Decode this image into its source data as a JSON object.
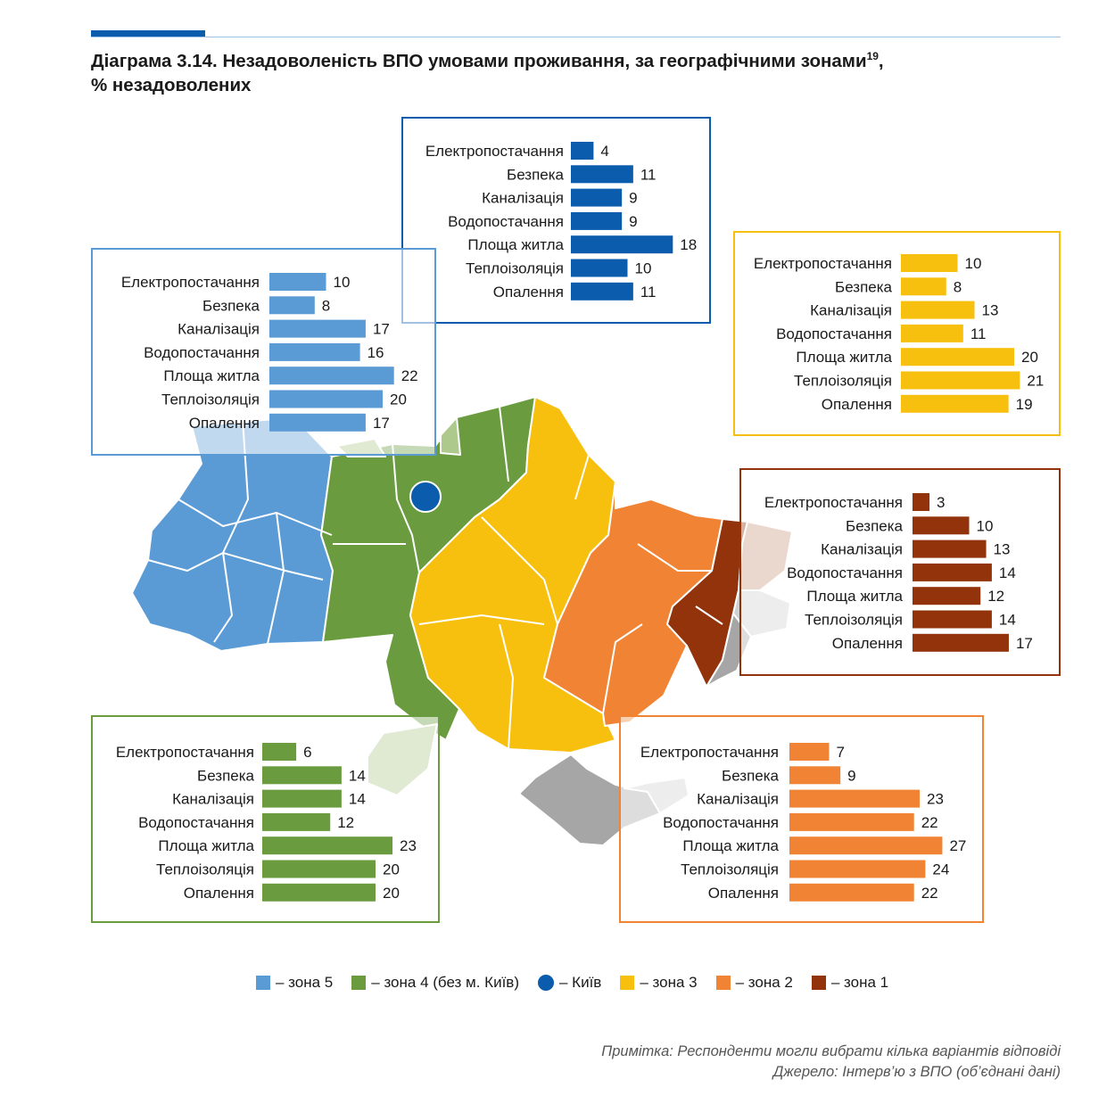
{
  "header": {
    "title_main": "Діаграма 3.14. Незадоволеність ВПО умовами проживання, за географічними зонами",
    "title_sup": "19",
    "title_tail": ",",
    "subtitle": "% незадоволених",
    "accent_color": "#0b5cad"
  },
  "chart_data": [
    {
      "type": "bar",
      "orientation": "horizontal",
      "series": "Київ",
      "color": "#0b5cad",
      "xlim": [
        0,
        27
      ],
      "categories": [
        "Електропостачання",
        "Безпека",
        "Каналізація",
        "Водопостачання",
        "Площа житла",
        "Теплоізоляція",
        "Опалення"
      ],
      "values": [
        4,
        11,
        9,
        9,
        18,
        10,
        11
      ]
    },
    {
      "type": "bar",
      "orientation": "horizontal",
      "series": "зона 5",
      "color": "#5b9bd5",
      "xlim": [
        0,
        27
      ],
      "categories": [
        "Електропостачання",
        "Безпека",
        "Каналізація",
        "Водопостачання",
        "Площа житла",
        "Теплоізоляція",
        "Опалення"
      ],
      "values": [
        10,
        8,
        17,
        16,
        22,
        20,
        17
      ]
    },
    {
      "type": "bar",
      "orientation": "horizontal",
      "series": "зона 3",
      "color": "#f8c00e",
      "xlim": [
        0,
        27
      ],
      "categories": [
        "Електропостачання",
        "Безпека",
        "Каналізація",
        "Водопостачання",
        "Площа житла",
        "Теплоізоляція",
        "Опалення"
      ],
      "values": [
        10,
        8,
        13,
        11,
        20,
        21,
        19
      ]
    },
    {
      "type": "bar",
      "orientation": "horizontal",
      "series": "зона 1",
      "color": "#92330b",
      "xlim": [
        0,
        27
      ],
      "categories": [
        "Електропостачання",
        "Безпека",
        "Каналізація",
        "Водопостачання",
        "Площа житла",
        "Теплоізоляція",
        "Опалення"
      ],
      "values": [
        3,
        10,
        13,
        14,
        12,
        14,
        17
      ]
    },
    {
      "type": "bar",
      "orientation": "horizontal",
      "series": "зона 4 (без м. Київ)",
      "color": "#6a9c3f",
      "xlim": [
        0,
        27
      ],
      "categories": [
        "Електропостачання",
        "Безпека",
        "Каналізація",
        "Водопостачання",
        "Площа житла",
        "Теплоізоляція",
        "Опалення"
      ],
      "values": [
        6,
        14,
        14,
        12,
        23,
        20,
        20
      ]
    },
    {
      "type": "bar",
      "orientation": "horizontal",
      "series": "зона 2",
      "color": "#f08434",
      "xlim": [
        0,
        27
      ],
      "categories": [
        "Електропостачання",
        "Безпека",
        "Каналізація",
        "Водопостачання",
        "Площа житла",
        "Теплоізоляція",
        "Опалення"
      ],
      "values": [
        7,
        9,
        23,
        22,
        27,
        24,
        22
      ]
    }
  ],
  "legend": [
    {
      "label": "– зона 5",
      "color": "#5b9bd5",
      "shape": "square"
    },
    {
      "label": "– зона 4 (без м. Київ)",
      "color": "#6a9c3f",
      "shape": "square"
    },
    {
      "label": "– Київ",
      "color": "#0b5cad",
      "shape": "circle"
    },
    {
      "label": "– зона 3",
      "color": "#f8c00e",
      "shape": "square"
    },
    {
      "label": "– зона 2",
      "color": "#f08434",
      "shape": "square"
    },
    {
      "label": "– зона 1",
      "color": "#92330b",
      "shape": "square"
    }
  ],
  "notes": {
    "note": "Примітка: Респонденти могли вибрати кілька варіантів відповіді",
    "source": "Джерело: Інтерв’ю з ВПО (об’єднані дані)"
  },
  "map_colors": {
    "zone5": "#5b9bd5",
    "zone4": "#6a9c3f",
    "zone3": "#f8c00e",
    "zone2": "#f08434",
    "zone1": "#92330b",
    "kyiv": "#0b5cad",
    "occupied_light": "#d0d0d0",
    "occupied_dark": "#a6a6a6",
    "green_light": "#aec98c",
    "brown_light": "#c9957f"
  }
}
